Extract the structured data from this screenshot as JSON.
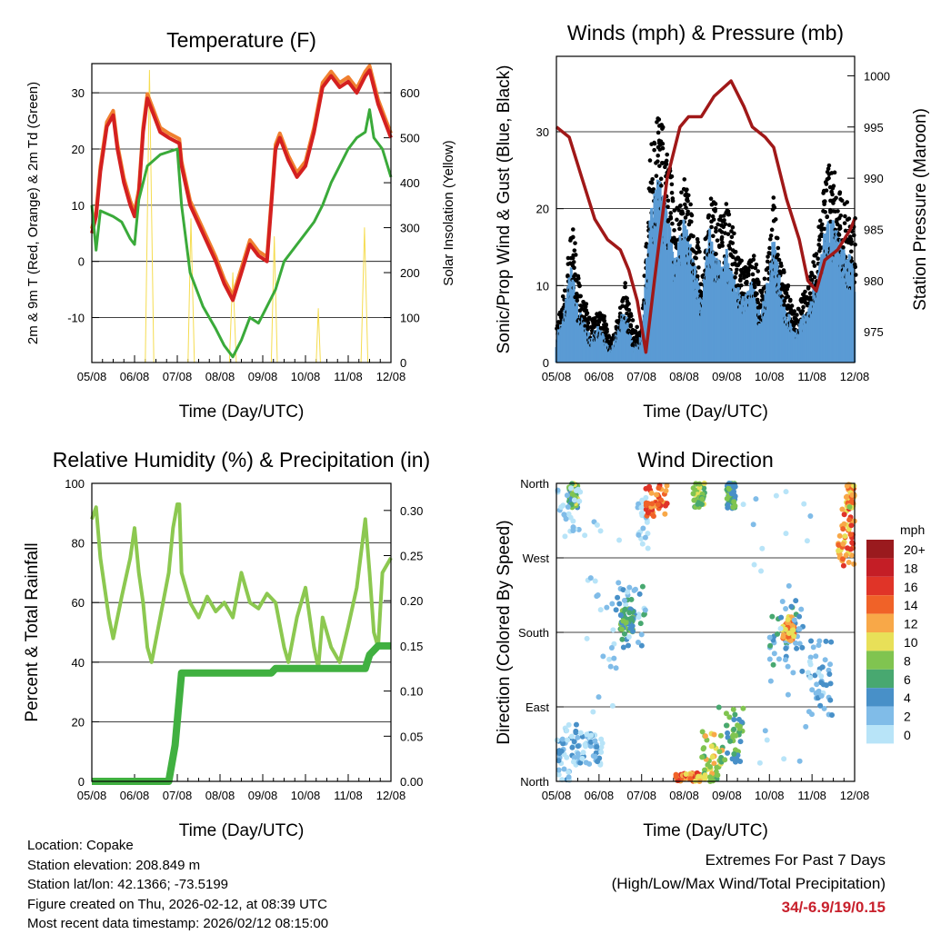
{
  "colors": {
    "temp": "#d42020",
    "temp9": "#f08030",
    "dew": "#3aaa3a",
    "solar": "#f5dc50",
    "gust": "#000000",
    "wind": "#5a9bd4",
    "pressure": "#a01818",
    "rh": "#8cc850",
    "precip": "#40b040"
  },
  "chart_data": [
    {
      "type": "line",
      "title": "Temperature (F)",
      "xlabel": "Time (Day/UTC)",
      "ylabel": "2m & 9m T (Red, Orange) & 2m Td (Green)",
      "ylabel_right": "Solar Insolation (Yellow)",
      "ylim": [
        -18,
        35.2
      ],
      "ylim_right": [
        0,
        665
      ],
      "xticks": [
        "05/08",
        "06/08",
        "07/08",
        "08/08",
        "09/08",
        "10/08",
        "11/08",
        "12/08"
      ],
      "yticks": [
        -10,
        0,
        10,
        20,
        30
      ],
      "yticks_right": [
        0,
        100,
        200,
        300,
        400,
        500,
        600
      ],
      "series": [
        {
          "name": "2m T",
          "color": "#d42020",
          "values": [
            [
              0,
              5
            ],
            [
              0.1,
              8
            ],
            [
              0.2,
              16
            ],
            [
              0.35,
              24
            ],
            [
              0.5,
              26
            ],
            [
              0.6,
              20
            ],
            [
              0.75,
              14
            ],
            [
              0.9,
              10
            ],
            [
              1.0,
              8
            ],
            [
              1.1,
              12
            ],
            [
              1.2,
              23
            ],
            [
              1.3,
              29
            ],
            [
              1.45,
              26
            ],
            [
              1.6,
              23
            ],
            [
              1.8,
              22
            ],
            [
              2.05,
              21
            ],
            [
              2.1,
              17
            ],
            [
              2.3,
              10
            ],
            [
              2.6,
              5
            ],
            [
              2.9,
              0
            ],
            [
              3.1,
              -4
            ],
            [
              3.3,
              -6.9
            ],
            [
              3.5,
              -2
            ],
            [
              3.7,
              3
            ],
            [
              3.9,
              1
            ],
            [
              4.1,
              0
            ],
            [
              4.3,
              20
            ],
            [
              4.4,
              22
            ],
            [
              4.6,
              18
            ],
            [
              4.8,
              15
            ],
            [
              5.0,
              17
            ],
            [
              5.2,
              23
            ],
            [
              5.4,
              31
            ],
            [
              5.6,
              33
            ],
            [
              5.8,
              31
            ],
            [
              6.0,
              32
            ],
            [
              6.2,
              30
            ],
            [
              6.4,
              33
            ],
            [
              6.5,
              34
            ],
            [
              6.7,
              28
            ],
            [
              6.85,
              25
            ],
            [
              7,
              22
            ]
          ]
        },
        {
          "name": "2m Td",
          "color": "#3aaa3a",
          "values": [
            [
              0,
              10
            ],
            [
              0.1,
              2
            ],
            [
              0.2,
              9
            ],
            [
              0.5,
              8
            ],
            [
              0.7,
              7
            ],
            [
              0.9,
              4
            ],
            [
              1.0,
              3
            ],
            [
              1.1,
              11
            ],
            [
              1.3,
              17
            ],
            [
              1.6,
              19
            ],
            [
              2.0,
              20
            ],
            [
              2.1,
              10
            ],
            [
              2.3,
              -2
            ],
            [
              2.6,
              -8
            ],
            [
              2.9,
              -12
            ],
            [
              3.1,
              -15
            ],
            [
              3.3,
              -17
            ],
            [
              3.5,
              -14
            ],
            [
              3.7,
              -10
            ],
            [
              3.9,
              -11
            ],
            [
              4.1,
              -8
            ],
            [
              4.3,
              -5
            ],
            [
              4.5,
              0
            ],
            [
              4.8,
              3
            ],
            [
              5.0,
              5
            ],
            [
              5.2,
              7
            ],
            [
              5.4,
              10
            ],
            [
              5.6,
              14
            ],
            [
              5.8,
              17
            ],
            [
              6.0,
              20
            ],
            [
              6.2,
              22
            ],
            [
              6.4,
              23
            ],
            [
              6.5,
              27
            ],
            [
              6.6,
              22
            ],
            [
              6.8,
              20
            ],
            [
              7,
              15
            ]
          ]
        }
      ],
      "solar": [
        [
          1.25,
          0
        ],
        [
          1.35,
          650
        ],
        [
          1.45,
          0
        ],
        [
          2.25,
          0
        ],
        [
          2.32,
          320
        ],
        [
          2.4,
          0
        ],
        [
          3.22,
          0
        ],
        [
          3.3,
          200
        ],
        [
          3.38,
          0
        ],
        [
          4.2,
          0
        ],
        [
          4.27,
          280
        ],
        [
          4.34,
          0
        ],
        [
          5.25,
          0
        ],
        [
          5.3,
          120
        ],
        [
          5.35,
          0
        ],
        [
          6.3,
          0
        ],
        [
          6.38,
          300
        ],
        [
          6.46,
          0
        ]
      ]
    },
    {
      "type": "scatter",
      "title": "Winds (mph) & Pressure (mb)",
      "xlabel": "Time (Day/UTC)",
      "ylabel": "Sonic/Prop Wind & Gust (Blue, Black)",
      "ylabel_right": "Station Pressure (Maroon)",
      "ylim": [
        0,
        39.8
      ],
      "ylim_right": [
        972,
        1001.9
      ],
      "xticks": [
        "05/08",
        "06/08",
        "07/08",
        "08/08",
        "09/08",
        "10/08",
        "11/08",
        "12/08"
      ],
      "yticks": [
        0,
        10,
        20,
        30
      ],
      "yticks_right": [
        975,
        980,
        985,
        990,
        995,
        1000
      ],
      "wind_envelope": [
        [
          0,
          2,
          5
        ],
        [
          0.2,
          5,
          10
        ],
        [
          0.35,
          9,
          17
        ],
        [
          0.5,
          5,
          10
        ],
        [
          0.8,
          2,
          5
        ],
        [
          1.0,
          3,
          7
        ],
        [
          1.3,
          1,
          3
        ],
        [
          1.6,
          5,
          10
        ],
        [
          1.8,
          1,
          4
        ],
        [
          2.0,
          2,
          5
        ],
        [
          2.2,
          12,
          28
        ],
        [
          2.4,
          18,
          32
        ],
        [
          2.6,
          14,
          26
        ],
        [
          2.8,
          10,
          20
        ],
        [
          3.0,
          14,
          24
        ],
        [
          3.2,
          10,
          18
        ],
        [
          3.4,
          6,
          12
        ],
        [
          3.6,
          13,
          22
        ],
        [
          3.8,
          9,
          18
        ],
        [
          4.0,
          10,
          20
        ],
        [
          4.2,
          8,
          14
        ],
        [
          4.4,
          6,
          12
        ],
        [
          4.6,
          8,
          14
        ],
        [
          4.8,
          4,
          9
        ],
        [
          5.0,
          8,
          16
        ],
        [
          5.1,
          12,
          22
        ],
        [
          5.3,
          6,
          12
        ],
        [
          5.6,
          2,
          6
        ],
        [
          5.8,
          4,
          9
        ],
        [
          6.0,
          6,
          12
        ],
        [
          6.2,
          10,
          20
        ],
        [
          6.4,
          14,
          26
        ],
        [
          6.6,
          12,
          22
        ],
        [
          6.8,
          10,
          20
        ],
        [
          7,
          8,
          18
        ]
      ],
      "pressure": [
        [
          0,
          995
        ],
        [
          0.3,
          994
        ],
        [
          0.6,
          990
        ],
        [
          0.9,
          986
        ],
        [
          1.2,
          984
        ],
        [
          1.5,
          983
        ],
        [
          1.7,
          981
        ],
        [
          1.9,
          978
        ],
        [
          2.1,
          973
        ],
        [
          2.3,
          980
        ],
        [
          2.6,
          990
        ],
        [
          2.9,
          995
        ],
        [
          3.1,
          996
        ],
        [
          3.4,
          996
        ],
        [
          3.7,
          998
        ],
        [
          4.1,
          999.5
        ],
        [
          4.4,
          997
        ],
        [
          4.6,
          995
        ],
        [
          4.9,
          994
        ],
        [
          5.1,
          993
        ],
        [
          5.4,
          988
        ],
        [
          5.7,
          984
        ],
        [
          5.9,
          980
        ],
        [
          6.1,
          979
        ],
        [
          6.3,
          982
        ],
        [
          6.6,
          983
        ],
        [
          6.9,
          985
        ],
        [
          7,
          986
        ]
      ]
    },
    {
      "type": "line",
      "title": "Relative Humidity (%) & Precipitation (in)",
      "xlabel": "Time (Day/UTC)",
      "ylabel": "Percent & Total Rainfall",
      "ylim": [
        0,
        100
      ],
      "ylim_right": [
        0,
        0.33
      ],
      "xticks": [
        "05/08",
        "06/08",
        "07/08",
        "08/08",
        "09/08",
        "10/08",
        "11/08",
        "12/08"
      ],
      "yticks": [
        0,
        20,
        40,
        60,
        80,
        100
      ],
      "yticks_right": [
        "0.00",
        "0.05",
        "0.10",
        "0.15",
        "0.20",
        "0.25",
        "0.30"
      ],
      "rh": [
        [
          0,
          88
        ],
        [
          0.1,
          92
        ],
        [
          0.2,
          75
        ],
        [
          0.4,
          55
        ],
        [
          0.5,
          48
        ],
        [
          0.7,
          62
        ],
        [
          0.9,
          75
        ],
        [
          1.0,
          85
        ],
        [
          1.1,
          70
        ],
        [
          1.2,
          60
        ],
        [
          1.3,
          45
        ],
        [
          1.4,
          40
        ],
        [
          1.6,
          55
        ],
        [
          1.8,
          70
        ],
        [
          1.9,
          85
        ],
        [
          2.0,
          93
        ],
        [
          2.05,
          93
        ],
        [
          2.1,
          70
        ],
        [
          2.3,
          60
        ],
        [
          2.5,
          55
        ],
        [
          2.7,
          62
        ],
        [
          2.9,
          57
        ],
        [
          3.1,
          60
        ],
        [
          3.3,
          55
        ],
        [
          3.5,
          70
        ],
        [
          3.7,
          60
        ],
        [
          3.9,
          58
        ],
        [
          4.1,
          63
        ],
        [
          4.3,
          60
        ],
        [
          4.5,
          45
        ],
        [
          4.6,
          40
        ],
        [
          4.8,
          55
        ],
        [
          5.0,
          65
        ],
        [
          5.2,
          45
        ],
        [
          5.3,
          38
        ],
        [
          5.4,
          55
        ],
        [
          5.6,
          45
        ],
        [
          5.8,
          40
        ],
        [
          6.0,
          52
        ],
        [
          6.2,
          65
        ],
        [
          6.4,
          88
        ],
        [
          6.5,
          70
        ],
        [
          6.6,
          50
        ],
        [
          6.7,
          45
        ],
        [
          6.8,
          70
        ],
        [
          7,
          75
        ]
      ],
      "precip": [
        [
          0,
          0
        ],
        [
          1.8,
          0
        ],
        [
          1.95,
          0.04
        ],
        [
          2.1,
          0.12
        ],
        [
          4.2,
          0.12
        ],
        [
          4.3,
          0.125
        ],
        [
          6.4,
          0.125
        ],
        [
          6.5,
          0.14
        ],
        [
          6.7,
          0.15
        ],
        [
          7,
          0.15
        ]
      ]
    },
    {
      "type": "scatter",
      "title": "Wind Direction",
      "xlabel": "Time (Day/UTC)",
      "ylabel": "Direction (Colored By Speed)",
      "ylim": [
        0,
        360
      ],
      "xticks": [
        "05/08",
        "06/08",
        "07/08",
        "08/08",
        "09/08",
        "10/08",
        "11/08",
        "12/08"
      ],
      "yticks": [
        "North",
        "East",
        "South",
        "West",
        "North"
      ],
      "clusters": [
        [
          0,
          0.5,
          0,
          70,
          3
        ],
        [
          0.5,
          1.1,
          20,
          60,
          3
        ],
        [
          0.3,
          0.5,
          330,
          360,
          8
        ],
        [
          0,
          0.6,
          290,
          360,
          1
        ],
        [
          1.3,
          2.1,
          160,
          240,
          4
        ],
        [
          1.5,
          1.8,
          180,
          210,
          7
        ],
        [
          1.9,
          2.2,
          280,
          360,
          1
        ],
        [
          2.1,
          2.6,
          320,
          360,
          15
        ],
        [
          2.8,
          3.4,
          0,
          10,
          14
        ],
        [
          3.4,
          3.9,
          0,
          60,
          10
        ],
        [
          3.8,
          4.4,
          20,
          90,
          7
        ],
        [
          3.2,
          3.5,
          330,
          360,
          9
        ],
        [
          4.0,
          4.2,
          330,
          360,
          7
        ],
        [
          5.0,
          5.8,
          130,
          220,
          5
        ],
        [
          5.3,
          5.6,
          170,
          200,
          13
        ],
        [
          5.9,
          6.5,
          80,
          170,
          3
        ],
        [
          6.6,
          7,
          260,
          330,
          14
        ],
        [
          6.8,
          7,
          330,
          360,
          12
        ],
        [
          4.2,
          6.0,
          0,
          360,
          1
        ],
        [
          0.6,
          1.5,
          0,
          360,
          1
        ]
      ],
      "legend": {
        "title": "mph",
        "labels": [
          "20+",
          "18",
          "16",
          "14",
          "12",
          "10",
          "8",
          "6",
          "4",
          "2",
          "0"
        ],
        "colors": [
          "#9a1a1e",
          "#c41e26",
          "#e03428",
          "#f06228",
          "#f8a848",
          "#e8e058",
          "#80c450",
          "#48a870",
          "#4890c8",
          "#80bce8",
          "#b8e4f8"
        ]
      }
    }
  ],
  "info": {
    "location": "Location: Copake",
    "elevation": "Station elevation: 208.849 m",
    "latlon": "Station lat/lon: 42.1366; -73.5199",
    "created": "Figure created on Thu, 2026-02-12, at 08:39 UTC",
    "recent": "Most recent data timestamp: 2026/02/12 08:15:00",
    "extremes_title": "Extremes For Past 7 Days",
    "extremes_sub": "(High/Low/Max Wind/Total Precipitation)",
    "extremes_values": "34/-6.9/19/0.15"
  }
}
